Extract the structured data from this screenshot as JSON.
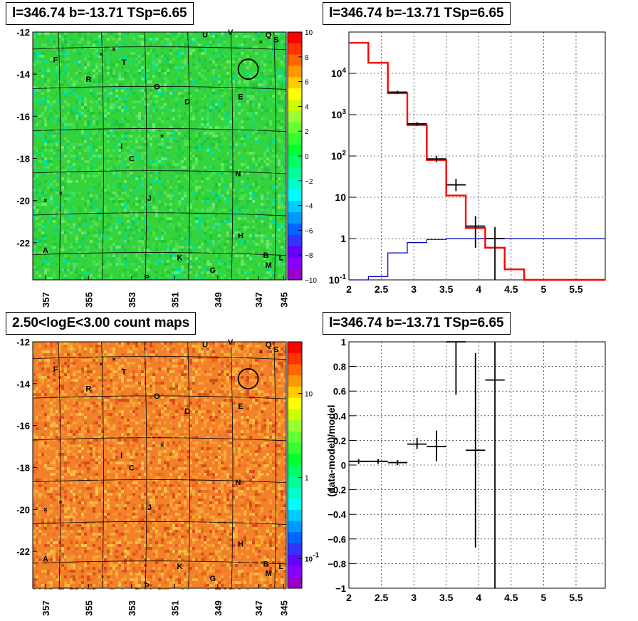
{
  "colors": {
    "map1_fill": "#35d43a",
    "map2_fill": "#f3802a",
    "model_red": "#ff0000",
    "model_blue": "#0000c0",
    "data_black": "#000000",
    "grid": "#000000"
  },
  "map_labels": {
    "galactic_l_ticks": [
      "357",
      "355",
      "353",
      "351",
      "349",
      "347",
      "345"
    ],
    "galactic_b_ticks": [
      "-12",
      "-14",
      "-16",
      "-18",
      "-20",
      "-22"
    ],
    "source_letters": [
      "F",
      "T",
      "R",
      "O",
      "D",
      "E",
      "U",
      "V",
      "Q",
      "S",
      "I",
      "C",
      "N",
      "J",
      "H",
      "A",
      "K",
      "B",
      "L",
      "M",
      "G",
      "P"
    ]
  },
  "chart_data": [
    {
      "type": "heatmap",
      "title": "l=346.74 b=-13.71 TSp=6.65",
      "x_ticks": [
        "357",
        "355",
        "353",
        "351",
        "349",
        "347",
        "345"
      ],
      "y_ticks": [
        "-12",
        "-14",
        "-16",
        "-18",
        "-20",
        "-22"
      ],
      "colorbar_ticks": [
        "10",
        "8",
        "6",
        "4",
        "2",
        "0",
        "−2",
        "−4",
        "−6",
        "−8",
        "−10"
      ],
      "zlim": [
        -10,
        10
      ],
      "colorbar": "linear"
    },
    {
      "type": "line",
      "title": "l=346.74 b=-13.71 TSp=6.65",
      "yscale": "log",
      "xlim": [
        2,
        5.95
      ],
      "ylim": [
        0.1,
        100000
      ],
      "x_ticks": [
        "2",
        "2.5",
        "3",
        "3.5",
        "4",
        "4.5",
        "5",
        "5.5"
      ],
      "y_ticks": [
        "10^-1",
        "1",
        "10",
        "10^2",
        "10^3",
        "10^4"
      ],
      "series": [
        {
          "values_x_edges": [
            2.0,
            2.3,
            2.6,
            2.9,
            3.2,
            3.5,
            3.8,
            4.1,
            4.4,
            4.7,
            5.0,
            5.3,
            5.6,
            5.95
          ],
          "values": [
            55000,
            18000,
            3300,
            560,
            80,
            11,
            1.8,
            0.6,
            0.18,
            0.1,
            0.1,
            0.1,
            0.1
          ]
        },
        {
          "values_x_edges": [
            2.0,
            2.3,
            2.6,
            2.9,
            3.2,
            3.5,
            3.8,
            4.1,
            4.4,
            4.7,
            5.0,
            5.3,
            5.6,
            5.95
          ],
          "values": [
            0.1,
            0.12,
            0.45,
            0.8,
            0.95,
            1.0,
            1.0,
            1.0,
            1.0,
            1.0,
            1.0,
            1.0,
            1.0
          ]
        },
        {
          "points": [
            {
              "x": 2.75,
              "y": 3500,
              "xerr": 0.15,
              "ylo": 3200,
              "yhi": 3800
            },
            {
              "x": 3.05,
              "y": 600,
              "xerr": 0.15,
              "ylo": 540,
              "yhi": 660
            },
            {
              "x": 3.35,
              "y": 85,
              "xerr": 0.15,
              "ylo": 70,
              "yhi": 100
            },
            {
              "x": 3.65,
              "y": 20,
              "xerr": 0.15,
              "ylo": 14,
              "yhi": 28
            },
            {
              "x": 3.95,
              "y": 2.0,
              "xerr": 0.15,
              "ylo": 0.6,
              "yhi": 3.5
            },
            {
              "x": 4.25,
              "y": 1.0,
              "xerr": 0.15,
              "ylo": 0.1,
              "yhi": 1.9
            }
          ]
        }
      ]
    },
    {
      "type": "heatmap",
      "title": "2.50<logE<3.00 count maps",
      "x_ticks": [
        "357",
        "355",
        "353",
        "351",
        "349",
        "347",
        "345"
      ],
      "y_ticks": [
        "-12",
        "-14",
        "-16",
        "-18",
        "-20",
        "-22"
      ],
      "colorbar_ticks": [
        "10",
        "1",
        "10^-1"
      ],
      "colorbar": "log"
    },
    {
      "type": "scatter",
      "title": "l=346.74 b=-13.71 TSp=6.65",
      "ylabel": "(data-model)/model",
      "xlim": [
        2,
        5.95
      ],
      "ylim": [
        -1,
        1
      ],
      "x_ticks": [
        "2",
        "2.5",
        "3",
        "3.5",
        "4",
        "4.5",
        "5",
        "5.5"
      ],
      "y_ticks": [
        "1",
        "0.8",
        "0.6",
        "0.4",
        "0.2",
        "0",
        "−0.2",
        "−0.4",
        "−0.6",
        "−0.8",
        "−1"
      ],
      "points": [
        {
          "x": 2.15,
          "y": 0.03,
          "xerr": 0.15,
          "ylo": 0.01,
          "yhi": 0.05
        },
        {
          "x": 2.45,
          "y": 0.03,
          "xerr": 0.15,
          "ylo": 0.01,
          "yhi": 0.05
        },
        {
          "x": 2.75,
          "y": 0.02,
          "xerr": 0.15,
          "ylo": 0.0,
          "yhi": 0.04
        },
        {
          "x": 3.05,
          "y": 0.17,
          "xerr": 0.15,
          "ylo": 0.13,
          "yhi": 0.22
        },
        {
          "x": 3.35,
          "y": 0.15,
          "xerr": 0.15,
          "ylo": 0.03,
          "yhi": 0.28
        },
        {
          "x": 3.65,
          "y": 1.0,
          "xerr": 0.15,
          "ylo": 0.57,
          "yhi": 1.0
        },
        {
          "x": 3.95,
          "y": 0.12,
          "xerr": 0.15,
          "ylo": -0.67,
          "yhi": 0.91
        },
        {
          "x": 4.25,
          "y": 0.69,
          "xerr": 0.15,
          "ylo": -1.0,
          "yhi": 1.0
        }
      ]
    }
  ]
}
